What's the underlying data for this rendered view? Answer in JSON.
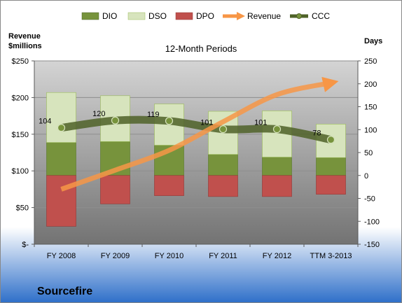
{
  "chart_data": {
    "type": "bar",
    "title": "12-Month Periods",
    "company": "Sourcefire",
    "y_left_label": [
      "Revenue",
      "$millions"
    ],
    "y_right_label": "Days",
    "categories": [
      "FY 2008",
      "FY 2009",
      "FY 2010",
      "FY 2011",
      "FY 2012",
      "TTM 3-2013"
    ],
    "ylim_left": [
      0,
      250
    ],
    "left_ticks": [
      "$-",
      "$50",
      "$100",
      "$150",
      "$200",
      "$250"
    ],
    "left_tick_values": [
      0,
      50,
      100,
      150,
      200,
      250
    ],
    "ylim_right": [
      -150,
      250
    ],
    "right_ticks": [
      "-150",
      "-100",
      "-50",
      "0",
      "50",
      "100",
      "150",
      "200",
      "250"
    ],
    "right_tick_values": [
      -150,
      -100,
      -50,
      0,
      50,
      100,
      150,
      200,
      250
    ],
    "series": [
      {
        "name": "DIO",
        "axis": "right",
        "kind": "stacked-bar",
        "color": "#77933C",
        "values": [
          72,
          74,
          66,
          46,
          40,
          39
        ]
      },
      {
        "name": "DSO",
        "axis": "right",
        "kind": "stacked-bar",
        "color": "#D7E4BD",
        "values": [
          109,
          100,
          90,
          94,
          101,
          73
        ]
      },
      {
        "name": "DPO",
        "axis": "right",
        "kind": "negative-bar",
        "color": "#C0504D",
        "values": [
          -111,
          -62,
          -44,
          -46,
          -46,
          -41
        ]
      },
      {
        "name": "Revenue",
        "axis": "left",
        "kind": "arrow-line",
        "color": "#F79646",
        "values": [
          75,
          101,
          128,
          167,
          204,
          220
        ]
      },
      {
        "name": "CCC",
        "axis": "right",
        "kind": "line",
        "color": "#4F6228",
        "values": [
          104,
          120,
          119,
          101,
          101,
          78
        ]
      }
    ],
    "ccc_labels": [
      "104",
      "120",
      "119",
      "101",
      "101",
      "78"
    ],
    "legend": "top",
    "grid": true
  }
}
